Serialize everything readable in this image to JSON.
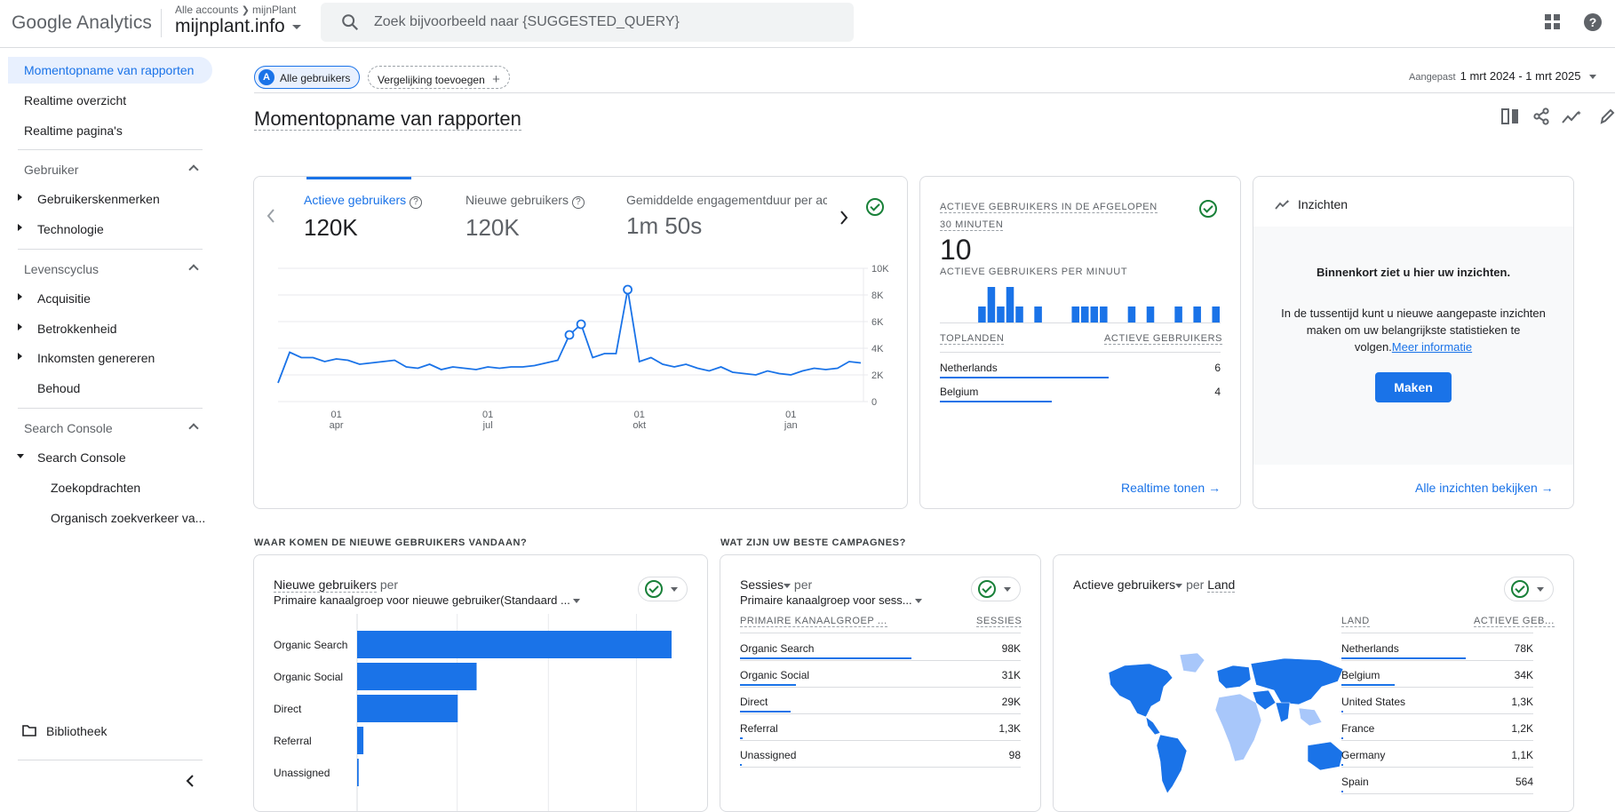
{
  "app": {
    "logo_text": "Google Analytics",
    "account_crumb": "Alle accounts",
    "account_property": "mijnPlant",
    "property_name": "mijnplant.info",
    "search_placeholder": "Zoek bijvoorbeeld naar {SUGGESTED_QUERY}",
    "accent_color": "#1a73e8"
  },
  "sidebar": {
    "top_items": [
      "Momentopname van rapporten",
      "Realtime overzicht",
      "Realtime pagina's"
    ],
    "sections": [
      {
        "title": "Gebruiker",
        "items": [
          "Gebruikerskenmerken",
          "Technologie"
        ]
      },
      {
        "title": "Levenscyclus",
        "items": [
          "Acquisitie",
          "Betrokkenheid",
          "Inkomsten genereren",
          "Behoud"
        ]
      },
      {
        "title": "Search Console",
        "items": [
          "Search Console",
          "Zoekopdrachten",
          "Organisch zoekverkeer va..."
        ]
      }
    ],
    "library": "Bibliotheek"
  },
  "toolbar": {
    "segment_badge": "A",
    "segment": "Alle gebruikers",
    "compare": "Vergelijking toevoegen",
    "date_prefix": "Aangepast",
    "date_range": "1 mrt 2024 - 1 mrt 2025"
  },
  "page_title": "Momentopname van rapporten",
  "overview_card": {
    "metrics": [
      {
        "label": "Actieve gebruikers",
        "value": "120K"
      },
      {
        "label": "Nieuwe gebruikers",
        "value": "120K"
      },
      {
        "label": "Gemiddelde engagementduur per ac",
        "value": "1m 50s"
      }
    ]
  },
  "chart_data": {
    "type": "line",
    "series": [
      {
        "name": "Actieve gebruikers",
        "color": "#1a73e8",
        "values": [
          1400,
          3700,
          3300,
          3300,
          3000,
          3200,
          3100,
          2800,
          2900,
          3000,
          3100,
          2600,
          2500,
          2800,
          2400,
          2600,
          2500,
          2400,
          2600,
          2500,
          2600,
          2600,
          2700,
          2900,
          3100,
          5000,
          5800,
          3300,
          3600,
          3600,
          8400,
          3000,
          3300,
          2800,
          2600,
          2800,
          2500,
          2300,
          2600,
          2200,
          2100,
          2000,
          2300,
          2100,
          2000,
          2300,
          2500,
          2400,
          2500,
          3000,
          2900
        ]
      }
    ],
    "x_ticks": [
      {
        "day": "01",
        "month": "apr",
        "index": 5
      },
      {
        "day": "01",
        "month": "jul",
        "index": 18
      },
      {
        "day": "01",
        "month": "okt",
        "index": 31
      },
      {
        "day": "01",
        "month": "jan",
        "index": 44
      }
    ],
    "y_ticks": [
      "10K",
      "8K",
      "6K",
      "4K",
      "2K",
      "0"
    ],
    "ylim": [
      0,
      10000
    ],
    "markers_at_index": [
      25,
      26,
      30
    ],
    "grid": true
  },
  "realtime_card": {
    "title": "ACTIEVE GEBRUIKERS IN DE AFGELOPEN 30 MINUTEN",
    "value": "10",
    "subtitle": "ACTIEVE GEBRUIKERS PER MINUUT",
    "minute_bars": [
      0,
      0,
      0,
      0,
      0,
      0,
      0,
      0,
      0,
      0,
      0,
      0,
      0,
      0,
      0,
      0,
      0,
      0,
      0,
      0,
      0,
      0,
      0,
      0,
      0,
      0,
      0,
      0,
      0,
      0
    ],
    "col_country": "TOPLANDEN",
    "col_users": "ACTIEVE GEBRUIKERS",
    "rows": [
      {
        "label": "Netherlands",
        "value": "6",
        "share": 0.6
      },
      {
        "label": "Belgium",
        "value": "4",
        "share": 0.4
      }
    ],
    "link": "Realtime tonen"
  },
  "insights_card": {
    "title": "Inzichten",
    "heading": "Binnenkort ziet u hier uw inzichten.",
    "body": "In de tussentijd kunt u nieuwe aangepaste inzichten maken om uw belangrijkste statistieken te volgen.",
    "more_link": "Meer informatie",
    "button": "Maken",
    "link": "Alle inzichten bekijken"
  },
  "section_new_users": "WAAR KOMEN DE NIEUWE GEBRUIKERS VANDAAN?",
  "section_campaigns": "WAT ZIJN UW BESTE CAMPAGNES?",
  "new_users_card": {
    "metric": "Nieuwe gebruikers",
    "per": "per",
    "dimension": "Primaire kanaalgroep voor nieuwe gebruiker(Standaard ...",
    "bars": [
      {
        "label": "Organic Search",
        "share": 1.0
      },
      {
        "label": "Organic Social",
        "share": 0.38
      },
      {
        "label": "Direct",
        "share": 0.32
      },
      {
        "label": "Referral",
        "share": 0.02
      },
      {
        "label": "Unassigned",
        "share": 0.005
      }
    ]
  },
  "campaigns_card": {
    "metric": "Sessies",
    "per": "per",
    "dimension": "Primaire kanaalgroep voor sess...",
    "col_dim": "PRIMAIRE KANAALGROEP ...",
    "col_val": "SESSIES",
    "rows": [
      {
        "label": "Organic Search",
        "value": "98K",
        "share": 0.61
      },
      {
        "label": "Organic Social",
        "value": "31K",
        "share": 0.2
      },
      {
        "label": "Direct",
        "value": "29K",
        "share": 0.18
      },
      {
        "label": "Referral",
        "value": "1,3K",
        "share": 0.01
      },
      {
        "label": "Unassigned",
        "value": "98",
        "share": 0.003
      }
    ]
  },
  "country_card": {
    "metric": "Actieve gebruikers",
    "per": "per",
    "dimension": "Land",
    "col_dim": "LAND",
    "col_val": "ACTIEVE GEB...",
    "rows": [
      {
        "label": "Netherlands",
        "value": "78K",
        "share": 0.65
      },
      {
        "label": "Belgium",
        "value": "34K",
        "share": 0.28
      },
      {
        "label": "United States",
        "value": "1,3K",
        "share": 0.01
      },
      {
        "label": "France",
        "value": "1,2K",
        "share": 0.01
      },
      {
        "label": "Germany",
        "value": "1,1K",
        "share": 0.01
      },
      {
        "label": "Spain",
        "value": "564",
        "share": 0.005
      }
    ]
  }
}
